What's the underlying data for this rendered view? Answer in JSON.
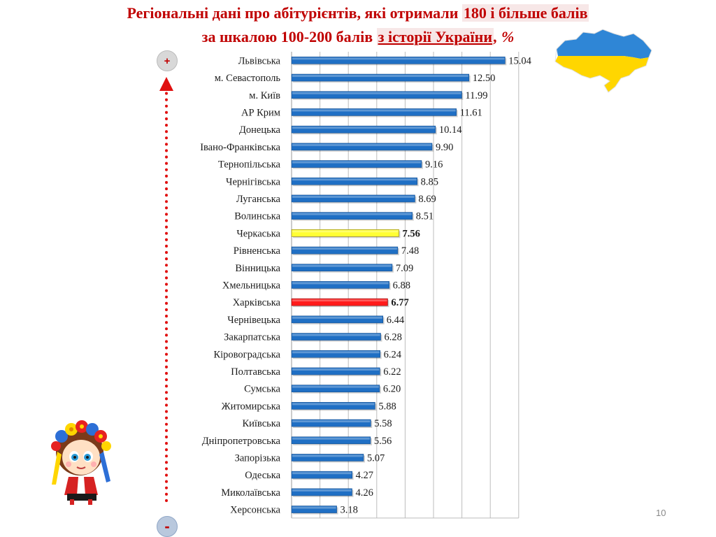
{
  "slide": {
    "title_line1_prefix": "Регіональні дані про абітурієнтів, які отримали ",
    "title_line1_highlight": "180 і більше балів",
    "title_line2_prefix": "за шкалою 100-200 балів ",
    "title_line2_subject": "з історії України",
    "title_line2_suffix": ", %",
    "plus_sign": "+",
    "minus_sign": "-",
    "page_number": "10"
  },
  "icons": {
    "map": "ukraine-map-icon",
    "doll": "girl-in-wreath-icon",
    "arrow": "up-arrow-dotted-icon"
  },
  "colors": {
    "default_bar": "#1f6fc4",
    "cherkasy_bar": "#ffff33",
    "kharkiv_bar": "#ff1a1a",
    "title": "#c00000"
  },
  "chart_data": {
    "type": "bar",
    "orientation": "horizontal",
    "categories": [
      "Львівська",
      "м. Севастополь",
      "м. Київ",
      "АР Крим",
      "Донецька",
      "Івано-Франківська",
      "Тернопільська",
      "Чернігівська",
      "Луганська",
      "Волинська",
      "Черкаська",
      "Рівненська",
      "Вінницька",
      "Хмельницька",
      "Харківська",
      "Чернівецька",
      "Закарпатська",
      "Кіровоградська",
      "Полтавська",
      "Сумська",
      "Житомирська",
      "Київська",
      "Дніпропетровська",
      "Запорізька",
      "Одеська",
      "Миколаївська",
      "Херсонська"
    ],
    "value_labels": [
      "15.04",
      "12.50",
      "11.99",
      "11.61",
      "10.14",
      "9.90",
      "9.16",
      "8.85",
      "8.69",
      "8.51",
      "7.56",
      "7.48",
      "7.09",
      "6.88",
      "6.77",
      "6.44",
      "6.28",
      "6.24",
      "6.22",
      "6.20",
      "5.88",
      "5.58",
      "5.56",
      "5.07",
      "4.27",
      "4.26",
      "3.18"
    ],
    "values": [
      15.04,
      12.5,
      11.99,
      11.61,
      10.14,
      9.9,
      9.16,
      8.85,
      8.69,
      8.51,
      7.56,
      7.48,
      7.09,
      6.88,
      6.77,
      6.44,
      6.28,
      6.24,
      6.22,
      6.2,
      5.88,
      5.58,
      5.56,
      5.07,
      4.27,
      4.26,
      3.18
    ],
    "highlights": {
      "Черкаська": "#ffff33",
      "Харківська": "#ff1a1a"
    },
    "bold_labels": [
      "Черкаська",
      "Харківська"
    ],
    "xlim": [
      0,
      16
    ],
    "grid": true,
    "title": "",
    "xlabel": "",
    "ylabel": ""
  }
}
